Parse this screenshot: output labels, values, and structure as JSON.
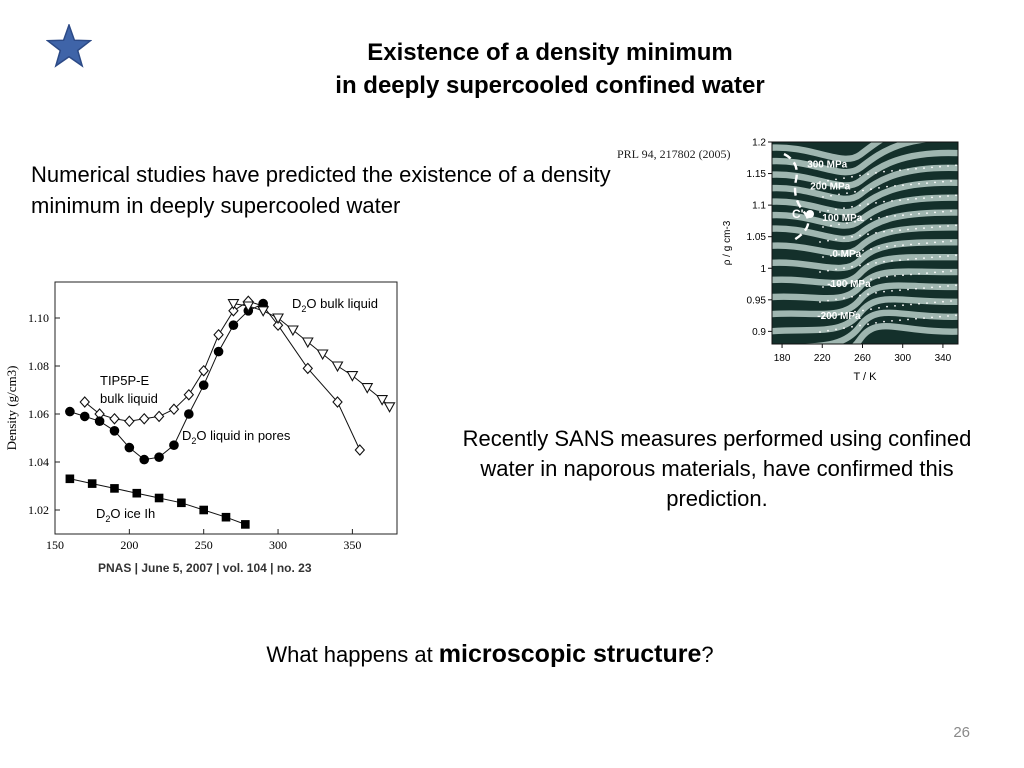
{
  "slide": {
    "title_line1": "Existence of a density minimum",
    "title_line2": "in deeply supercooled confined water",
    "left_text": "Numerical studies have predicted the existence of a density minimum in deeply supercooled water",
    "right_text": "Recently SANS measures performed using confined water in naporous materials, have confirmed this prediction.",
    "question_prefix": "What happens at ",
    "question_strong": "microscopic structure",
    "question_suffix": "?",
    "page_number": "26",
    "star_color": "#3f64a8"
  },
  "chart_data": [
    {
      "type": "line",
      "citation": "PNAS | June 5, 2007 | vol. 104 | no. 23",
      "ylabel": "Density (g/cm3)",
      "xlim": [
        150,
        380
      ],
      "ylim": [
        1.01,
        1.115
      ],
      "x_ticks": [
        150,
        200,
        250,
        300,
        350
      ],
      "y_ticks": [
        1.02,
        1.04,
        1.06,
        1.08,
        1.1
      ],
      "series": [
        {
          "name": "TIP5P-E bulk liquid",
          "label_line1": "TIP5P-E",
          "label_line2": "bulk liquid",
          "marker": "open-diamond",
          "x": [
            170,
            180,
            190,
            200,
            210,
            220,
            230,
            240,
            250,
            260,
            270,
            280,
            290,
            300,
            320,
            340,
            355
          ],
          "y": [
            1.065,
            1.06,
            1.058,
            1.057,
            1.058,
            1.059,
            1.062,
            1.068,
            1.078,
            1.093,
            1.103,
            1.107,
            1.105,
            1.097,
            1.079,
            1.065,
            1.045
          ]
        },
        {
          "name": "D2O liquid in pores",
          "label_main": "D",
          "label_sub": "2",
          "label_rest": "O liquid in pores",
          "marker": "filled-circle",
          "x": [
            160,
            170,
            180,
            190,
            200,
            210,
            220,
            230,
            240,
            250,
            260,
            270,
            280,
            290
          ],
          "y": [
            1.061,
            1.059,
            1.057,
            1.053,
            1.046,
            1.041,
            1.042,
            1.047,
            1.06,
            1.072,
            1.086,
            1.097,
            1.103,
            1.106
          ]
        },
        {
          "name": "D2O bulk liquid",
          "label_main": "D",
          "label_sub": "2",
          "label_rest": "O bulk liquid",
          "marker": "open-triangle",
          "x": [
            270,
            280,
            290,
            300,
            310,
            320,
            330,
            340,
            350,
            360,
            370,
            375
          ],
          "y": [
            1.106,
            1.105,
            1.103,
            1.1,
            1.095,
            1.09,
            1.085,
            1.08,
            1.076,
            1.071,
            1.066,
            1.063
          ]
        },
        {
          "name": "D2O ice Ih",
          "label_main": "D",
          "label_sub": "2",
          "label_rest": "O ice Ih",
          "marker": "filled-square",
          "x": [
            160,
            175,
            190,
            205,
            220,
            235,
            250,
            265,
            278
          ],
          "y": [
            1.033,
            1.031,
            1.029,
            1.027,
            1.025,
            1.023,
            1.02,
            1.017,
            1.014
          ]
        }
      ]
    },
    {
      "type": "heatmap",
      "citation": "PRL 94, 217802 (2005)",
      "xlabel": "T / K",
      "ylabel": "ρ / g cm-3",
      "xlim": [
        170,
        355
      ],
      "ylim": [
        0.88,
        1.2
      ],
      "x_ticks": [
        180,
        220,
        260,
        300,
        340
      ],
      "y_ticks": [
        0.9,
        0.95,
        1,
        1.05,
        1.1,
        1.15,
        1.2
      ],
      "point_label": "C'",
      "pressure_labels": [
        "300 MPa",
        "200 MPa",
        "100 MPa",
        "0 MPa",
        "-100 MPa",
        "-200 MPa"
      ],
      "pressure_label_positions": [
        [
          205,
          1.16
        ],
        [
          208,
          1.125
        ],
        [
          220,
          1.075
        ],
        [
          230,
          1.018
        ],
        [
          225,
          0.97
        ],
        [
          215,
          0.92
        ]
      ],
      "colors": {
        "background": "#14302b",
        "contour": "#9fb6b0"
      }
    }
  ]
}
